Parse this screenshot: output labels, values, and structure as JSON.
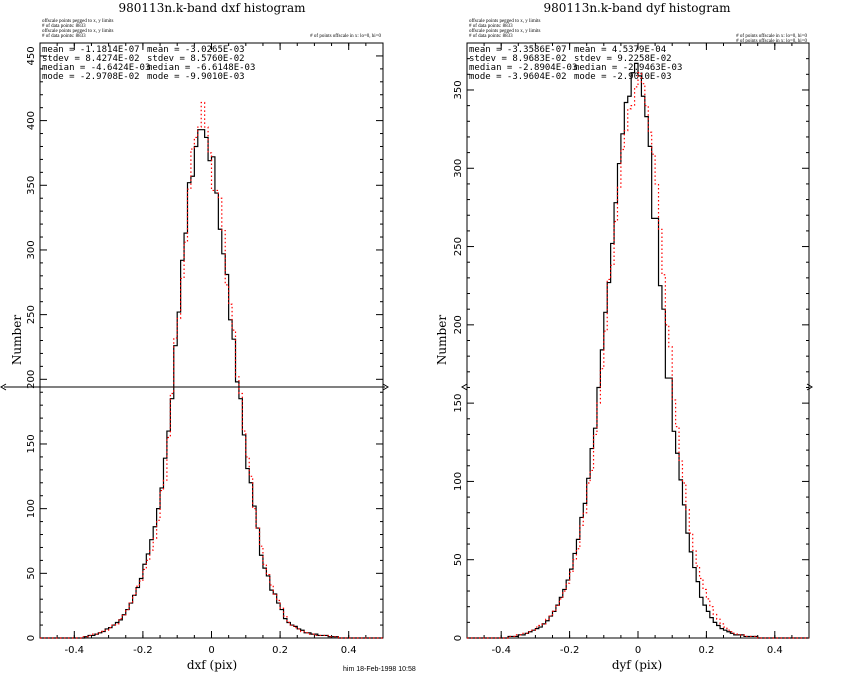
{
  "footer": "him 18-Feb-1998 10:58",
  "colors": {
    "primary": "#000000",
    "secondary": "#ff0000"
  },
  "chart_data": [
    {
      "type": "histogram",
      "title": "980113n.k-band dxf histogram",
      "xlabel": "dxf (pix)",
      "ylabel": "Number",
      "xlim": [
        -0.5,
        0.5
      ],
      "ylim": [
        0,
        460
      ],
      "xticks": [
        -0.4,
        -0.2,
        0,
        0.2,
        0.4
      ],
      "yticks": [
        0,
        50,
        100,
        150,
        200,
        250,
        300,
        350,
        400,
        450
      ],
      "header_left": [
        "offscale points pegged to x, y limits",
        "# of data points: 8833",
        "offscale points pegged to x, y limits",
        "# of data points: 8833"
      ],
      "header_right": [
        "# of points offscale in x: lo=0, hi=0"
      ],
      "stats": [
        [
          "mean = -1.1814E-07",
          "mean = -3.0265E-03"
        ],
        [
          "stdev = 8.4274E-02",
          "stdev = 8.5760E-02"
        ],
        [
          "median = -4.6424E-03",
          "median = -6.6148E-03"
        ],
        [
          "mode = -2.9708E-02",
          "mode = -9.9010E-03"
        ]
      ],
      "x": [
        -0.5,
        -0.49,
        -0.48,
        -0.47,
        -0.46,
        -0.45,
        -0.44,
        -0.43,
        -0.42,
        -0.41,
        -0.4,
        -0.39,
        -0.38,
        -0.37,
        -0.36,
        -0.35,
        -0.34,
        -0.33,
        -0.32,
        -0.31,
        -0.3,
        -0.29,
        -0.28,
        -0.27,
        -0.26,
        -0.25,
        -0.24,
        -0.23,
        -0.22,
        -0.21,
        -0.2,
        -0.19,
        -0.18,
        -0.17,
        -0.16,
        -0.15,
        -0.14,
        -0.13,
        -0.12,
        -0.11,
        -0.1,
        -0.09,
        -0.08,
        -0.07,
        -0.06,
        -0.05,
        -0.04,
        -0.03,
        -0.02,
        -0.01,
        0.0,
        0.01,
        0.02,
        0.03,
        0.04,
        0.05,
        0.06,
        0.07,
        0.08,
        0.09,
        0.1,
        0.11,
        0.12,
        0.13,
        0.14,
        0.15,
        0.16,
        0.17,
        0.18,
        0.19,
        0.2,
        0.21,
        0.22,
        0.23,
        0.24,
        0.25,
        0.26,
        0.27,
        0.28,
        0.29,
        0.3,
        0.31,
        0.32,
        0.33,
        0.34,
        0.35,
        0.36,
        0.37,
        0.38,
        0.39,
        0.4,
        0.41,
        0.42,
        0.43,
        0.44,
        0.45,
        0.46,
        0.47,
        0.48,
        0.49,
        0.5
      ],
      "series": [
        {
          "name": "dxf",
          "color": "#000000",
          "style": "solid",
          "values": [
            0,
            0,
            0,
            0,
            0,
            0,
            0,
            0,
            0,
            0,
            0,
            0,
            0,
            1,
            2,
            2,
            3,
            4,
            5,
            7,
            8,
            10,
            12,
            14,
            18,
            22,
            27,
            33,
            39,
            46,
            57,
            65,
            76,
            86,
            100,
            116,
            139,
            160,
            185,
            226,
            252,
            292,
            313,
            352,
            357,
            380,
            393,
            393,
            387,
            369,
            372,
            344,
            316,
            297,
            281,
            246,
            231,
            198,
            185,
            157,
            131,
            120,
            102,
            85,
            64,
            54,
            48,
            37,
            34,
            27,
            22,
            15,
            12,
            10,
            9,
            7,
            6,
            4,
            4,
            3,
            3,
            2,
            2,
            2,
            1,
            1,
            1,
            0,
            0,
            0,
            0,
            0,
            0,
            0,
            0,
            0,
            0,
            0,
            0,
            0
          ]
        },
        {
          "name": "dxf (dotted)",
          "color": "#ff0000",
          "style": "dotted",
          "values": [
            0,
            0,
            0,
            0,
            0,
            0,
            0,
            0,
            0,
            0,
            0,
            0,
            1,
            1,
            2,
            3,
            3,
            4,
            5,
            6,
            8,
            10,
            11,
            15,
            18,
            22,
            27,
            33,
            40,
            44,
            53,
            60,
            68,
            77,
            91,
            114,
            122,
            155,
            189,
            232,
            247,
            278,
            306,
            347,
            378,
            387,
            395,
            414,
            395,
            375,
            346,
            346,
            340,
            315,
            273,
            258,
            238,
            202,
            189,
            160,
            140,
            125,
            100,
            85,
            71,
            57,
            49,
            41,
            34,
            29,
            23,
            17,
            12,
            10,
            8,
            7,
            5,
            4,
            3,
            3,
            2,
            2,
            2,
            2,
            1,
            1,
            1,
            0,
            0,
            0,
            0,
            0,
            0,
            0,
            0,
            0,
            0,
            0,
            0,
            0
          ]
        }
      ]
    },
    {
      "type": "histogram",
      "title": "980113n.k-band dyf histogram",
      "xlabel": "dyf (pix)",
      "ylabel": "Number",
      "xlim": [
        -0.5,
        0.5
      ],
      "ylim": [
        0,
        380
      ],
      "xticks": [
        -0.4,
        -0.2,
        0,
        0.2,
        0.4
      ],
      "yticks": [
        0,
        50,
        100,
        150,
        200,
        250,
        300,
        350
      ],
      "header_left": [
        "offscale points pegged to x, y limits",
        "# of data points: 8833",
        "offscale points pegged to x, y limits",
        "# of data points: 8833"
      ],
      "header_right": [
        "# of points offscale in x: lo=0, hi=0",
        "# of points offscale in x: lo=0, hi=0"
      ],
      "stats": [
        [
          "mean = -3.3586E-07",
          "mean = 4.5379E-04"
        ],
        [
          "stdev = 8.9683E-02",
          "stdev = 9.2258E-02"
        ],
        [
          "median = -2.8904E-03",
          "median = -2.9463E-03"
        ],
        [
          "mode = -3.9604E-02",
          "mode = -2.9010E-03"
        ]
      ],
      "x": [
        -0.5,
        -0.49,
        -0.48,
        -0.47,
        -0.46,
        -0.45,
        -0.44,
        -0.43,
        -0.42,
        -0.41,
        -0.4,
        -0.39,
        -0.38,
        -0.37,
        -0.36,
        -0.35,
        -0.34,
        -0.33,
        -0.32,
        -0.31,
        -0.3,
        -0.29,
        -0.28,
        -0.27,
        -0.26,
        -0.25,
        -0.24,
        -0.23,
        -0.22,
        -0.21,
        -0.2,
        -0.19,
        -0.18,
        -0.17,
        -0.16,
        -0.15,
        -0.14,
        -0.13,
        -0.12,
        -0.11,
        -0.1,
        -0.09,
        -0.08,
        -0.07,
        -0.06,
        -0.05,
        -0.04,
        -0.03,
        -0.02,
        -0.01,
        0.0,
        0.01,
        0.02,
        0.03,
        0.04,
        0.05,
        0.06,
        0.07,
        0.08,
        0.09,
        0.1,
        0.11,
        0.12,
        0.13,
        0.14,
        0.15,
        0.16,
        0.17,
        0.18,
        0.19,
        0.2,
        0.21,
        0.22,
        0.23,
        0.24,
        0.25,
        0.26,
        0.27,
        0.28,
        0.29,
        0.3,
        0.31,
        0.32,
        0.33,
        0.34,
        0.35,
        0.36,
        0.37,
        0.38,
        0.39,
        0.4,
        0.41,
        0.42,
        0.43,
        0.44,
        0.45,
        0.46,
        0.47,
        0.48,
        0.49,
        0.5
      ],
      "series": [
        {
          "name": "dyf",
          "color": "#000000",
          "style": "solid",
          "values": [
            0,
            0,
            0,
            0,
            0,
            0,
            0,
            0,
            0,
            0,
            0,
            0,
            1,
            1,
            1,
            2,
            2,
            3,
            4,
            5,
            6,
            7,
            9,
            11,
            14,
            17,
            21,
            26,
            31,
            37,
            44,
            54,
            63,
            77,
            86,
            102,
            121,
            134,
            160,
            184,
            208,
            227,
            252,
            278,
            303,
            322,
            342,
            346,
            361,
            367,
            359,
            346,
            333,
            314,
            268,
            268,
            225,
            210,
            166,
            166,
            132,
            118,
            101,
            85,
            67,
            55,
            45,
            36,
            26,
            21,
            17,
            13,
            10,
            8,
            6,
            5,
            4,
            3,
            2,
            2,
            2,
            1,
            1,
            1,
            1,
            0,
            0,
            0,
            0,
            0,
            0,
            0,
            0,
            0,
            0,
            0,
            0,
            0,
            0,
            0
          ]
        },
        {
          "name": "dyf (dotted)",
          "color": "#ff0000",
          "style": "dotted",
          "values": [
            0,
            0,
            0,
            0,
            0,
            0,
            0,
            0,
            0,
            0,
            0,
            0,
            1,
            1,
            2,
            2,
            3,
            3,
            4,
            5,
            7,
            8,
            9,
            12,
            14,
            17,
            21,
            25,
            30,
            35,
            42,
            50,
            57,
            72,
            80,
            99,
            107,
            130,
            150,
            172,
            196,
            229,
            238,
            266,
            288,
            312,
            324,
            338,
            340,
            352,
            361,
            354,
            340,
            323,
            309,
            290,
            261,
            232,
            200,
            186,
            152,
            135,
            113,
            99,
            82,
            67,
            56,
            46,
            38,
            31,
            25,
            20,
            15,
            12,
            9,
            7,
            5,
            4,
            3,
            2,
            2,
            1,
            1,
            1,
            1,
            0,
            0,
            0,
            0,
            0,
            0,
            0,
            0,
            0,
            0,
            0,
            0,
            0,
            0,
            0
          ]
        }
      ]
    }
  ]
}
